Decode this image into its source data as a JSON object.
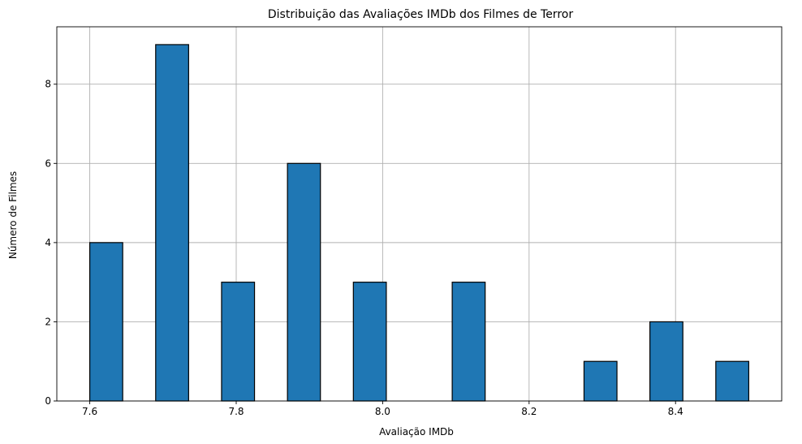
{
  "chart_data": {
    "type": "bar",
    "title": "Distribuição das Avaliações IMDb dos Filmes de Terror",
    "xlabel": "Avaliação IMDb",
    "ylabel": "Número de Filmes",
    "xlim": [
      7.555,
      8.545
    ],
    "ylim": [
      0,
      9.45
    ],
    "x_ticks": [
      7.6,
      7.8,
      8.0,
      8.2,
      8.4
    ],
    "x_tick_labels": [
      "7.6",
      "7.8",
      "8.0",
      "8.2",
      "8.4"
    ],
    "y_ticks": [
      0,
      2,
      4,
      6,
      8
    ],
    "y_tick_labels": [
      "0",
      "2",
      "4",
      "6",
      "8"
    ],
    "grid": true,
    "bar_color": "#1f77b4",
    "edge_color": "#000000",
    "bins": [
      {
        "start": 7.6,
        "end": 7.645,
        "value": 4
      },
      {
        "start": 7.645,
        "end": 7.69,
        "value": 0
      },
      {
        "start": 7.69,
        "end": 7.735,
        "value": 9
      },
      {
        "start": 7.735,
        "end": 7.78,
        "value": 0
      },
      {
        "start": 7.78,
        "end": 7.825,
        "value": 3
      },
      {
        "start": 7.825,
        "end": 7.87,
        "value": 0
      },
      {
        "start": 7.87,
        "end": 7.915,
        "value": 6
      },
      {
        "start": 7.915,
        "end": 7.96,
        "value": 0
      },
      {
        "start": 7.96,
        "end": 8.005,
        "value": 3
      },
      {
        "start": 8.005,
        "end": 8.05,
        "value": 0
      },
      {
        "start": 8.05,
        "end": 8.095,
        "value": 0
      },
      {
        "start": 8.095,
        "end": 8.14,
        "value": 3
      },
      {
        "start": 8.14,
        "end": 8.185,
        "value": 0
      },
      {
        "start": 8.185,
        "end": 8.23,
        "value": 0
      },
      {
        "start": 8.23,
        "end": 8.275,
        "value": 0
      },
      {
        "start": 8.275,
        "end": 8.32,
        "value": 1
      },
      {
        "start": 8.32,
        "end": 8.365,
        "value": 0
      },
      {
        "start": 8.365,
        "end": 8.41,
        "value": 2
      },
      {
        "start": 8.41,
        "end": 8.455,
        "value": 0
      },
      {
        "start": 8.455,
        "end": 8.5,
        "value": 1
      }
    ]
  }
}
